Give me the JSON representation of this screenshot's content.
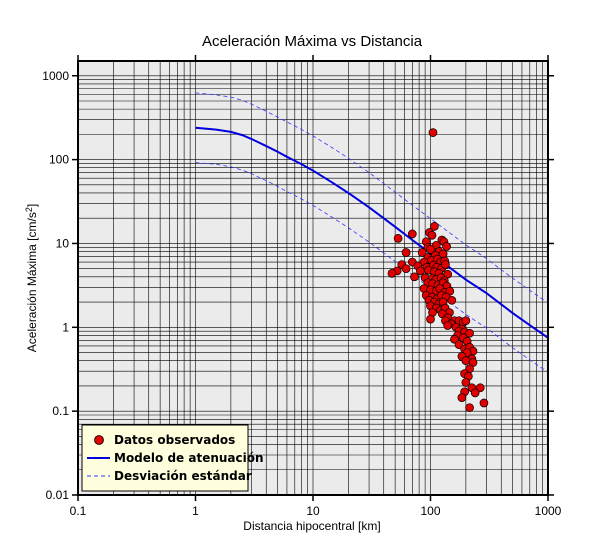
{
  "chart_data": {
    "type": "scatter",
    "title": "Aceleración Máxima vs Distancia",
    "xlabel": "Distancia hipocentral [km]",
    "ylabel_main": "Aceleración Máxima [cm/s",
    "ylabel_sup": "2",
    "ylabel_end": "]",
    "xscale": "log",
    "yscale": "log",
    "xlim": [
      0.1,
      1000
    ],
    "ylim": [
      0.01,
      1500
    ],
    "grid": true,
    "legend_position": "bottom-left",
    "x_tick_labels": [
      "0.1",
      "1",
      "10",
      "100",
      "1000"
    ],
    "y_tick_labels": [
      "0.01",
      "0.1",
      "1",
      "10",
      "100",
      "1000"
    ],
    "colors": {
      "plot_background": "#ebebeb",
      "grid": "#000000",
      "marker_fill": "#e00000",
      "model_line": "#0000dd",
      "deviation_line": "#3333ff",
      "legend_background": "#ffffdd"
    },
    "series": [
      {
        "name": "Datos observados",
        "style": "markers",
        "points": [
          [
            105,
            210
          ],
          [
            108,
            16
          ],
          [
            98,
            13.5
          ],
          [
            70,
            13
          ],
          [
            103,
            12.5
          ],
          [
            92,
            10.5
          ],
          [
            53,
            11.5
          ],
          [
            125,
            11
          ],
          [
            130,
            10.5
          ],
          [
            137,
            9.2
          ],
          [
            112,
            9.5
          ],
          [
            95,
            9
          ],
          [
            100,
            8.5
          ],
          [
            85,
            7.8
          ],
          [
            62,
            7.8
          ],
          [
            118,
            8
          ],
          [
            128,
            7.5
          ],
          [
            110,
            7.2
          ],
          [
            95,
            6.8
          ],
          [
            102,
            6.3
          ],
          [
            115,
            6.5
          ],
          [
            70,
            6
          ],
          [
            88,
            6
          ],
          [
            122,
            6
          ],
          [
            132,
            6.2
          ],
          [
            57,
            5.6
          ],
          [
            78,
            5.4
          ],
          [
            93,
            5.2
          ],
          [
            106,
            5.5
          ],
          [
            113,
            5.2
          ],
          [
            125,
            5.1
          ],
          [
            134,
            5.6
          ],
          [
            62,
            5.0
          ],
          [
            52,
            4.7
          ],
          [
            47,
            4.4
          ],
          [
            82,
            4.7
          ],
          [
            96,
            4.8
          ],
          [
            108,
            4.6
          ],
          [
            118,
            4.4
          ],
          [
            140,
            4.3
          ],
          [
            73,
            4.0
          ],
          [
            90,
            3.9
          ],
          [
            103,
            3.8
          ],
          [
            111,
            3.7
          ],
          [
            123,
            3.9
          ],
          [
            131,
            3.6
          ],
          [
            95,
            3.4
          ],
          [
            104,
            3.3
          ],
          [
            116,
            3.2
          ],
          [
            128,
            3.4
          ],
          [
            138,
            3.1
          ],
          [
            88,
            2.9
          ],
          [
            100,
            2.8
          ],
          [
            112,
            2.7
          ],
          [
            120,
            2.9
          ],
          [
            132,
            2.6
          ],
          [
            146,
            2.7
          ],
          [
            92,
            2.4
          ],
          [
            103,
            2.3
          ],
          [
            114,
            2.2
          ],
          [
            124,
            2.4
          ],
          [
            136,
            2.3
          ],
          [
            97,
            2.1
          ],
          [
            108,
            2.0
          ],
          [
            118,
            1.9
          ],
          [
            128,
            2.0
          ],
          [
            152,
            2.1
          ],
          [
            100,
            1.8
          ],
          [
            112,
            1.7
          ],
          [
            122,
            1.6
          ],
          [
            133,
            1.7
          ],
          [
            145,
            1.5
          ],
          [
            104,
            1.5
          ],
          [
            126,
            1.45
          ],
          [
            140,
            1.3
          ],
          [
            100,
            1.25
          ],
          [
            134,
            1.2
          ],
          [
            160,
            1.2
          ],
          [
            175,
            1.2
          ],
          [
            190,
            1.15
          ],
          [
            150,
            1.1
          ],
          [
            140,
            1.05
          ],
          [
            200,
            1.2
          ],
          [
            165,
            1.0
          ],
          [
            185,
            0.95
          ],
          [
            175,
            0.9
          ],
          [
            195,
            0.88
          ],
          [
            215,
            0.85
          ],
          [
            170,
            0.8
          ],
          [
            190,
            0.75
          ],
          [
            160,
            0.72
          ],
          [
            205,
            0.68
          ],
          [
            175,
            0.62
          ],
          [
            195,
            0.55
          ],
          [
            215,
            0.58
          ],
          [
            230,
            0.52
          ],
          [
            205,
            0.5
          ],
          [
            185,
            0.45
          ],
          [
            225,
            0.42
          ],
          [
            200,
            0.4
          ],
          [
            230,
            0.38
          ],
          [
            215,
            0.32
          ],
          [
            195,
            0.28
          ],
          [
            210,
            0.26
          ],
          [
            200,
            0.22
          ],
          [
            225,
            0.19
          ],
          [
            265,
            0.19
          ],
          [
            195,
            0.17
          ],
          [
            240,
            0.165
          ],
          [
            185,
            0.145
          ],
          [
            285,
            0.125
          ],
          [
            215,
            0.11
          ]
        ]
      },
      {
        "name": "Modelo de atenuación",
        "style": "line",
        "x": [
          1,
          1.5,
          2,
          2.5,
          3,
          4,
          5,
          6,
          7,
          8,
          10,
          15,
          20,
          30,
          50,
          70,
          100,
          150,
          200,
          300,
          500,
          700,
          1000
        ],
        "y": [
          240,
          228,
          214,
          196,
          176,
          145,
          124,
          108,
          97,
          88,
          74,
          52,
          40,
          27,
          15.8,
          11,
          7.6,
          5.0,
          3.7,
          2.55,
          1.48,
          1.06,
          0.75
        ]
      },
      {
        "name": "Desviación estándar",
        "style": "dashed",
        "upper": {
          "x": [
            1,
            1.5,
            2,
            2.5,
            3,
            4,
            5,
            6,
            7,
            8,
            10,
            15,
            20,
            30,
            50,
            70,
            100,
            150,
            200,
            300,
            500,
            700,
            1000
          ],
          "y": [
            625,
            592,
            556,
            510,
            458,
            377,
            322,
            281,
            252,
            229,
            192,
            135,
            104,
            70,
            41,
            28.6,
            19.8,
            13.0,
            9.6,
            6.6,
            3.85,
            2.76,
            1.95
          ]
        },
        "lower": {
          "x": [
            1,
            1.5,
            2,
            2.5,
            3,
            4,
            5,
            6,
            7,
            8,
            10,
            15,
            20,
            30,
            50,
            70,
            100,
            150,
            200,
            300,
            500,
            700,
            1000
          ],
          "y": [
            92,
            88,
            82,
            75,
            68,
            56,
            48,
            41.5,
            37.3,
            33.8,
            28.5,
            20,
            15.4,
            10.4,
            6.1,
            4.23,
            2.92,
            1.92,
            1.42,
            0.98,
            0.57,
            0.41,
            0.29
          ]
        }
      }
    ]
  }
}
